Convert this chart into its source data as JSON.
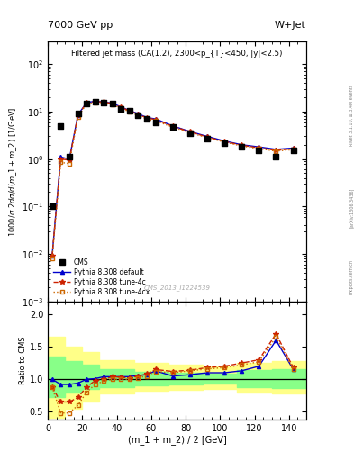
{
  "title_left": "7000 GeV pp",
  "title_right": "W+Jet",
  "plot_title": "Filtered jet mass (CA(1.2), 2300<p_{T}<450, |y|<2.5)",
  "xlabel": "(m_1 + m_2) / 2 [GeV]",
  "ylabel_main": "1000/\\sigma 2d\\sigma/d(m_1 + m_2) [1/GeV]",
  "ylabel_ratio": "Ratio to CMS",
  "watermark": "CMS_2013_I1224539",
  "right_label": "Rivet 3.1.10, ≥ 3.4M events",
  "arxiv_label": "[arXiv:1306.3436]",
  "mcplots_label": "mcplots.cern.ch",
  "x_data": [
    2.5,
    7.5,
    12.5,
    17.5,
    22.5,
    27.5,
    32.5,
    37.5,
    42.5,
    47.5,
    52.5,
    57.5,
    62.5,
    72.5,
    82.5,
    92.5,
    102.5,
    112.5,
    122.5,
    132.5,
    142.5
  ],
  "cms_y": [
    0.1,
    5.0,
    1.1,
    9.0,
    15.0,
    16.0,
    15.5,
    15.0,
    11.5,
    10.5,
    8.5,
    7.0,
    6.0,
    4.8,
    3.5,
    2.7,
    2.2,
    1.8,
    1.5,
    1.1,
    1.5
  ],
  "default_y": [
    0.009,
    1.1,
    1.0,
    8.5,
    15.5,
    16.5,
    16.0,
    15.0,
    12.5,
    10.5,
    9.0,
    7.5,
    7.0,
    5.0,
    3.8,
    3.0,
    2.4,
    2.0,
    1.8,
    1.6,
    1.7
  ],
  "tune4c_y": [
    0.009,
    1.0,
    0.95,
    8.3,
    15.2,
    16.2,
    15.8,
    14.8,
    12.3,
    10.3,
    8.8,
    7.3,
    6.8,
    4.9,
    3.75,
    2.9,
    2.35,
    1.95,
    1.72,
    1.52,
    1.65
  ],
  "tune4cx_y": [
    0.008,
    0.85,
    0.8,
    7.8,
    14.5,
    15.5,
    15.2,
    14.2,
    11.8,
    9.8,
    8.3,
    6.9,
    6.4,
    4.7,
    3.6,
    2.82,
    2.28,
    1.88,
    1.65,
    1.47,
    1.58
  ],
  "ratio_default": [
    1.0,
    0.92,
    0.92,
    0.94,
    1.0,
    1.01,
    1.04,
    1.04,
    1.04,
    1.04,
    1.06,
    1.07,
    1.13,
    1.05,
    1.07,
    1.1,
    1.1,
    1.13,
    1.2,
    1.6,
    1.15
  ],
  "ratio_4c": [
    0.88,
    0.65,
    0.65,
    0.72,
    0.88,
    0.98,
    1.0,
    1.04,
    1.03,
    1.02,
    1.05,
    1.08,
    1.15,
    1.12,
    1.14,
    1.18,
    1.2,
    1.25,
    1.3,
    1.7,
    1.18
  ],
  "ratio_4cx": [
    0.88,
    0.48,
    0.48,
    0.6,
    0.8,
    0.92,
    0.97,
    1.0,
    1.0,
    1.0,
    1.02,
    1.05,
    1.12,
    1.1,
    1.13,
    1.16,
    1.18,
    1.22,
    1.27,
    1.65,
    1.15
  ],
  "band_x": [
    0,
    5,
    10,
    20,
    30,
    50,
    70,
    90,
    110,
    130,
    150
  ],
  "yellow_low": [
    0.4,
    0.4,
    0.55,
    0.65,
    0.78,
    0.82,
    0.84,
    0.85,
    0.8,
    0.78,
    0.78
  ],
  "yellow_high": [
    1.65,
    1.65,
    1.5,
    1.42,
    1.3,
    1.25,
    1.22,
    1.2,
    1.25,
    1.28,
    1.28
  ],
  "green_low": [
    0.72,
    0.72,
    0.8,
    0.85,
    0.88,
    0.9,
    0.92,
    0.93,
    0.88,
    0.87,
    0.87
  ],
  "green_high": [
    1.35,
    1.35,
    1.28,
    1.22,
    1.15,
    1.12,
    1.1,
    1.09,
    1.14,
    1.16,
    1.16
  ],
  "cms_color": "#000000",
  "default_color": "#0000cc",
  "tune4c_color": "#cc2200",
  "tune4cx_color": "#cc6600",
  "xlim": [
    0,
    150
  ],
  "ylim_main": [
    0.001,
    300
  ],
  "ylim_ratio": [
    0.38,
    2.2
  ],
  "ratio_yticks": [
    0.5,
    1.0,
    1.5,
    2.0
  ],
  "background_color": "#ffffff"
}
